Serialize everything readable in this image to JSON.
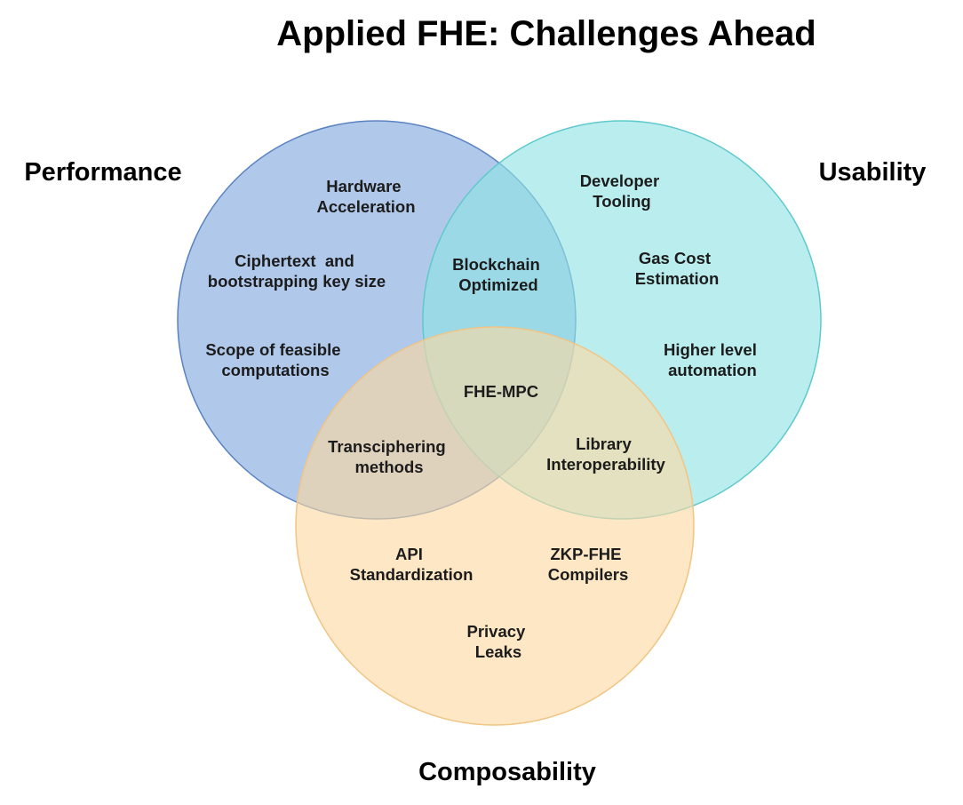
{
  "title": "Applied FHE: Challenges Ahead",
  "sets": {
    "performance": {
      "label": "Performance",
      "fill": "#7fa6dd",
      "stroke": "#5a83c2"
    },
    "usability": {
      "label": "Usability",
      "fill": "#8fe3e3",
      "stroke": "#5fc9cd"
    },
    "composability": {
      "label": "Composability",
      "fill": "#fbd9a2",
      "stroke": "#f0c585"
    }
  },
  "items": {
    "hardware_acceleration": [
      "Hardware",
      "Acceleration"
    ],
    "ciphertext_key_size": [
      "Ciphertext  and",
      "bootstrapping key size"
    ],
    "feasible_computations": [
      "Scope of feasible",
      "computations"
    ],
    "developer_tooling": [
      "Developer",
      "Tooling"
    ],
    "gas_cost_estimation": [
      "Gas Cost",
      "Estimation"
    ],
    "higher_level_automation": [
      "Higher level",
      "automation"
    ],
    "blockchain_optimized": [
      "Blockchain",
      "Optimized"
    ],
    "fhe_mpc": [
      "FHE-MPC"
    ],
    "transciphering_methods": [
      "Transciphering",
      "methods"
    ],
    "library_interoperability": [
      "Library",
      "Interoperability"
    ],
    "api_standardization": [
      "API",
      "Standardization"
    ],
    "zkp_fhe_compilers": [
      "ZKP-FHE",
      "Compilers"
    ],
    "privacy_leaks": [
      "Privacy",
      "Leaks"
    ]
  }
}
